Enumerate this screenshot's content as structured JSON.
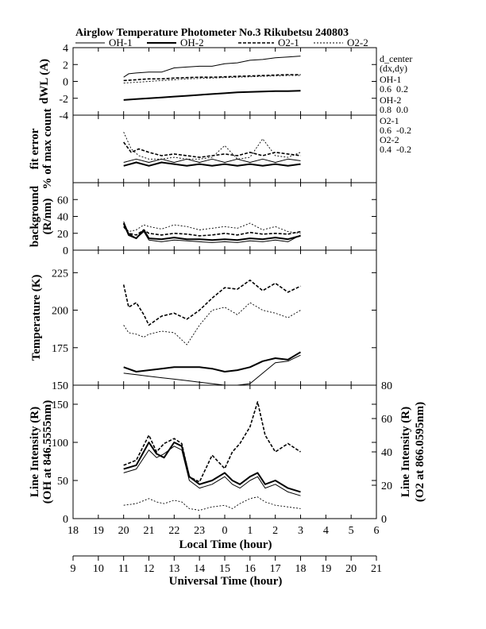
{
  "header": {
    "title": "Airglow Temperature Photometer No.3  Rikubetsu    240803"
  },
  "legend": [
    {
      "name": "OH-1",
      "style": "solid-thin"
    },
    {
      "name": "OH-2",
      "style": "solid-thick"
    },
    {
      "name": "O2-1",
      "style": "dashed-thick"
    },
    {
      "name": "O2-2",
      "style": "dashed-thin"
    }
  ],
  "side_info": {
    "d_center": "d_center",
    "dxdy": "(dx,dy)",
    "oh1_label": "OH-1",
    "oh1_vals": "0.6  0.2",
    "oh2_label": "OH-2",
    "oh2_vals": "0.8  0.0",
    "o21_label": "O2-1",
    "o21_vals": "0.6  -0.2",
    "o22_label": "O2-2",
    "o22_vals": "0.4  -0.2"
  },
  "colors": {
    "line": "#000000",
    "background": "#ffffff"
  },
  "chart_data": [
    {
      "type": "line",
      "panel": "dwl",
      "ylabel": "dWL (A)",
      "ylim": [
        -4,
        4
      ],
      "yticks": [
        "-4",
        "-2",
        "0",
        "2",
        "4"
      ],
      "xlim": [
        9,
        21
      ],
      "x_units": "Universal Time (hour)",
      "series": [
        {
          "name": "OH-1",
          "x": [
            11,
            11.2,
            11.5,
            12,
            12.5,
            13,
            13.5,
            14,
            14.5,
            15,
            15.5,
            16,
            16.5,
            17,
            17.5,
            18
          ],
          "values": [
            0.5,
            0.9,
            1.0,
            1.1,
            1.1,
            1.6,
            1.7,
            1.8,
            1.8,
            2.1,
            2.2,
            2.5,
            2.6,
            2.8,
            2.9,
            3.0
          ]
        },
        {
          "name": "OH-2",
          "x": [
            11,
            11.5,
            12,
            12.5,
            13,
            13.5,
            14,
            14.5,
            15,
            15.5,
            16,
            16.5,
            17,
            17.5,
            18
          ],
          "values": [
            -2.2,
            -2.1,
            -2.0,
            -1.9,
            -1.8,
            -1.7,
            -1.6,
            -1.5,
            -1.4,
            -1.3,
            -1.25,
            -1.2,
            -1.15,
            -1.15,
            -1.1
          ]
        },
        {
          "name": "O2-1",
          "x": [
            11,
            11.5,
            12,
            12.5,
            13,
            13.5,
            14,
            14.5,
            15,
            15.5,
            16,
            16.5,
            17,
            17.5,
            18
          ],
          "values": [
            0.1,
            0.2,
            0.3,
            0.3,
            0.4,
            0.45,
            0.5,
            0.5,
            0.55,
            0.6,
            0.65,
            0.7,
            0.75,
            0.8,
            0.8
          ]
        },
        {
          "name": "O2-2",
          "x": [
            11,
            11.5,
            12,
            12.5,
            13,
            13.5,
            14,
            14.5,
            15,
            15.5,
            16,
            16.5,
            17,
            17.5,
            18
          ],
          "values": [
            -0.2,
            -0.1,
            0.0,
            0.1,
            0.2,
            0.3,
            0.35,
            0.4,
            0.45,
            0.5,
            0.55,
            0.6,
            0.65,
            0.7,
            0.7
          ]
        }
      ]
    },
    {
      "type": "line",
      "panel": "fit_error",
      "ylabel": "fit error",
      "ylabel2": "% of max count",
      "ylim": [
        0,
        2
      ],
      "yticks": [],
      "xlim": [
        9,
        21
      ],
      "series": [
        {
          "name": "OH-1",
          "x": [
            11,
            11.5,
            12,
            12.5,
            13,
            13.5,
            14,
            14.5,
            15,
            15.5,
            16,
            16.5,
            17,
            17.5,
            18
          ],
          "values": [
            0.6,
            0.7,
            0.6,
            0.7,
            0.6,
            0.7,
            0.6,
            0.7,
            0.6,
            0.7,
            0.6,
            0.7,
            0.6,
            0.7,
            0.65
          ]
        },
        {
          "name": "OH-2",
          "x": [
            11,
            11.5,
            12,
            12.5,
            13,
            13.5,
            14,
            14.5,
            15,
            15.5,
            16,
            16.5,
            17,
            17.5,
            18
          ],
          "values": [
            0.5,
            0.6,
            0.5,
            0.6,
            0.55,
            0.5,
            0.55,
            0.5,
            0.55,
            0.5,
            0.55,
            0.5,
            0.55,
            0.5,
            0.55
          ]
        },
        {
          "name": "O2-1",
          "x": [
            11,
            11.3,
            11.6,
            12,
            12.5,
            13,
            13.5,
            14,
            14.5,
            15,
            15.5,
            16,
            16.5,
            17,
            17.5,
            18
          ],
          "values": [
            1.2,
            0.9,
            1.0,
            0.9,
            0.8,
            0.85,
            0.8,
            0.75,
            0.8,
            0.85,
            0.8,
            0.9,
            0.8,
            0.9,
            0.85,
            0.8
          ]
        },
        {
          "name": "O2-2",
          "x": [
            11,
            11.3,
            11.6,
            12,
            12.5,
            13,
            13.5,
            14,
            14.5,
            15,
            15.5,
            16,
            16.5,
            17,
            17.5,
            18
          ],
          "values": [
            1.5,
            1.0,
            0.8,
            0.7,
            0.7,
            0.75,
            0.7,
            0.7,
            0.75,
            1.1,
            0.7,
            0.75,
            1.3,
            0.8,
            0.75,
            0.9
          ]
        }
      ]
    },
    {
      "type": "line",
      "panel": "background",
      "ylabel": "background",
      "ylabel2": "(R/nm)",
      "ylim": [
        0,
        80
      ],
      "yticks": [
        "0",
        "20",
        "40",
        "60"
      ],
      "xlim": [
        9,
        21
      ],
      "series": [
        {
          "name": "OH-1",
          "x": [
            11,
            11.2,
            11.5,
            11.8,
            12,
            12.5,
            13,
            13.5,
            14,
            14.5,
            15,
            15.5,
            16,
            16.5,
            17,
            17.5,
            18
          ],
          "values": [
            34,
            20,
            14,
            22,
            12,
            10,
            12,
            11,
            10,
            9,
            10,
            9,
            11,
            10,
            12,
            10,
            18
          ]
        },
        {
          "name": "OH-2",
          "x": [
            11,
            11.2,
            11.5,
            11.8,
            12,
            12.5,
            13,
            13.5,
            14,
            14.5,
            15,
            15.5,
            16,
            16.5,
            17,
            17.5,
            18
          ],
          "values": [
            32,
            18,
            14,
            24,
            14,
            13,
            15,
            13,
            13,
            12,
            13,
            12,
            14,
            13,
            15,
            13,
            17
          ]
        },
        {
          "name": "O2-1",
          "x": [
            11,
            11.2,
            11.5,
            11.8,
            12,
            12.5,
            13,
            13.5,
            14,
            14.5,
            15,
            15.5,
            16,
            16.5,
            17,
            17.5,
            18
          ],
          "values": [
            28,
            20,
            18,
            24,
            20,
            18,
            20,
            19,
            17,
            18,
            20,
            18,
            21,
            19,
            20,
            19,
            22
          ]
        },
        {
          "name": "O2-2",
          "x": [
            11,
            11.2,
            11.5,
            11.8,
            12,
            12.5,
            13,
            13.5,
            14,
            14.5,
            15,
            15.5,
            16,
            16.5,
            17,
            17.5,
            18
          ],
          "values": [
            30,
            22,
            24,
            30,
            28,
            25,
            30,
            28,
            24,
            26,
            28,
            26,
            32,
            24,
            28,
            22,
            20
          ]
        }
      ]
    },
    {
      "type": "line",
      "panel": "temperature",
      "ylabel": "Temperature (K)",
      "ylim": [
        150,
        240
      ],
      "yticks": [
        "150",
        "175",
        "200",
        "225"
      ],
      "xlim": [
        9,
        21
      ],
      "series": [
        {
          "name": "OH-1",
          "x": [
            11,
            11.5,
            12,
            12.5,
            13,
            13.5,
            14,
            14.5,
            15,
            15.5,
            16,
            16.5,
            17,
            17.5,
            18
          ],
          "values": [
            158,
            157,
            156,
            155,
            154,
            153,
            152,
            151,
            150,
            150,
            151,
            158,
            165,
            166,
            170
          ]
        },
        {
          "name": "OH-2",
          "x": [
            11,
            11.5,
            12,
            12.5,
            13,
            13.5,
            14,
            14.5,
            15,
            15.5,
            16,
            16.5,
            17,
            17.5,
            18
          ],
          "values": [
            162,
            159,
            160,
            161,
            162,
            162,
            162,
            161,
            159,
            160,
            162,
            166,
            168,
            167,
            172
          ]
        },
        {
          "name": "O2-1",
          "x": [
            11,
            11.2,
            11.5,
            11.8,
            12,
            12.5,
            13,
            13.5,
            14,
            14.5,
            15,
            15.5,
            16,
            16.5,
            17,
            17.5,
            18
          ],
          "values": [
            217,
            202,
            205,
            197,
            190,
            196,
            198,
            194,
            200,
            208,
            215,
            214,
            220,
            213,
            218,
            212,
            216
          ]
        },
        {
          "name": "O2-2",
          "x": [
            11,
            11.2,
            11.5,
            11.8,
            12,
            12.5,
            13,
            13.5,
            14,
            14.5,
            15,
            15.5,
            16,
            16.5,
            17,
            17.5,
            18
          ],
          "values": [
            190,
            185,
            184,
            182,
            184,
            186,
            185,
            177,
            190,
            200,
            202,
            197,
            205,
            200,
            198,
            195,
            200
          ]
        }
      ]
    },
    {
      "type": "line",
      "panel": "line_intensity",
      "ylabel": "Line Intensity (R)",
      "ylabel2": "(OH at 846.5555nm)",
      "ylabel_right": "Line Intensity (R)",
      "ylabel_right2": "(O2 at 866.0595nm)",
      "ylim": [
        0,
        175
      ],
      "yticks": [
        "0",
        "50",
        "100",
        "150"
      ],
      "ylim_right": [
        0,
        80
      ],
      "yticks_right": [
        "0",
        "20",
        "40",
        "60",
        "80"
      ],
      "xlim": [
        9,
        21
      ],
      "series": [
        {
          "name": "OH-1",
          "x": [
            11,
            11.5,
            12,
            12.3,
            12.6,
            13,
            13.3,
            13.6,
            14,
            14.5,
            15,
            15.3,
            15.6,
            16,
            16.3,
            16.6,
            17,
            17.5,
            18
          ],
          "values": [
            60,
            65,
            90,
            80,
            85,
            95,
            90,
            50,
            40,
            45,
            55,
            45,
            40,
            50,
            55,
            40,
            45,
            35,
            30
          ]
        },
        {
          "name": "OH-2",
          "x": [
            11,
            11.5,
            12,
            12.3,
            12.6,
            13,
            13.3,
            13.6,
            14,
            14.5,
            15,
            15.3,
            15.6,
            16,
            16.3,
            16.6,
            17,
            17.5,
            18
          ],
          "values": [
            65,
            70,
            100,
            85,
            80,
            100,
            95,
            55,
            45,
            50,
            60,
            50,
            45,
            55,
            60,
            45,
            50,
            40,
            35
          ]
        },
        {
          "name": "O2-1",
          "x": [
            11,
            11.5,
            12,
            12.3,
            12.6,
            13,
            13.3,
            13.6,
            14,
            14.5,
            15,
            15.3,
            15.6,
            16,
            16.3,
            16.6,
            17,
            17.5,
            18
          ],
          "values": [
            32,
            35,
            50,
            40,
            45,
            48,
            45,
            25,
            22,
            38,
            30,
            40,
            45,
            55,
            70,
            50,
            40,
            45,
            40
          ]
        },
        {
          "name": "O2-2",
          "x": [
            11,
            11.5,
            12,
            12.3,
            12.6,
            13,
            13.3,
            13.6,
            14,
            14.5,
            15,
            15.3,
            15.6,
            16,
            16.3,
            16.6,
            17,
            17.5,
            18
          ],
          "values": [
            8,
            9,
            12,
            10,
            9,
            11,
            10,
            6,
            5,
            7,
            8,
            6,
            9,
            12,
            13,
            10,
            8,
            7,
            6
          ]
        }
      ]
    }
  ],
  "axes": {
    "local_time": {
      "label": "Local Time (hour)",
      "ticks": [
        "18",
        "19",
        "20",
        "21",
        "22",
        "23",
        "0",
        "1",
        "2",
        "3",
        "4",
        "5",
        "6"
      ]
    },
    "universal_time": {
      "label": "Universal Time (hour)",
      "ticks": [
        "9",
        "10",
        "11",
        "12",
        "13",
        "14",
        "15",
        "16",
        "17",
        "18",
        "19",
        "20",
        "21"
      ]
    }
  }
}
